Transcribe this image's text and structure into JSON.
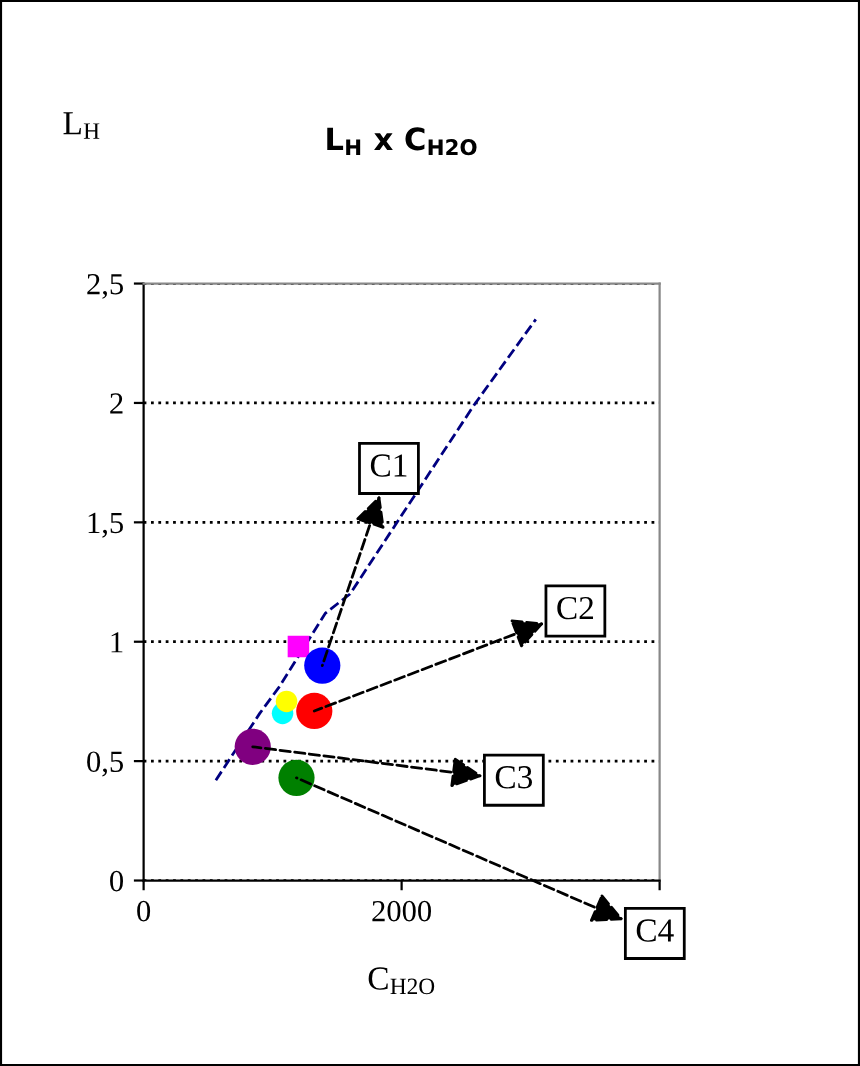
{
  "chart_data": {
    "type": "scatter",
    "title": "L$_{H}$ x C$_{H2O}$",
    "xlabel": "C$_{H2O}$",
    "ylabel": "L$_{H}$",
    "xlim": [
      0,
      4000
    ],
    "ylim": [
      0,
      2.5
    ],
    "xticks": [
      0,
      2000,
      {
        "value": 4000,
        "label": null
      }
    ],
    "yticks": [
      0,
      {
        "value": 0.5,
        "label": "0,5"
      },
      {
        "value": 1,
        "label": "1"
      },
      {
        "value": 1.5,
        "label": "1,5"
      },
      {
        "value": 2,
        "label": "2"
      },
      {
        "value": 2.5,
        "label": "2,5"
      }
    ],
    "grid": "y",
    "legend": false,
    "marker": "circle",
    "series": [
      {
        "type": "line",
        "color": "#000080",
        "line_style": "dashed",
        "marker": "none",
        "x": [
          560,
          900,
          1050,
          1410,
          1600,
          2560,
          3040
        ],
        "values": [
          0.42,
          0.7,
          0.81,
          1.12,
          1.2,
          1.99,
          2.35
        ]
      },
      {
        "color": "#ff00ff",
        "marker": "square",
        "x": [
          1200
        ],
        "values": [
          0.98
        ]
      },
      {
        "color": "#00ffff",
        "x": [
          1077
        ],
        "values": [
          0.7
        ]
      },
      {
        "color": "#ffff00",
        "x": [
          1108
        ],
        "values": [
          0.75
        ]
      },
      {
        "color": "#0000ff",
        "x": [
          1385
        ],
        "values": [
          0.9
        ]
      },
      {
        "color": "#ff0000",
        "x": [
          1323
        ],
        "values": [
          0.71
        ]
      },
      {
        "color": "#800080",
        "x": [
          846
        ],
        "values": [
          0.56
        ]
      },
      {
        "color": "#008000",
        "x": [
          1185
        ],
        "values": [
          0.43
        ]
      }
    ],
    "annotations": [
      {
        "text": "C1",
        "x": 1385,
        "y": 0.9
      },
      {
        "text": "C2",
        "x": 1323,
        "y": 0.71
      },
      {
        "text": "C3",
        "x": 846,
        "y": 0.56
      },
      {
        "text": "C4",
        "x": 1185,
        "y": 0.43
      }
    ]
  }
}
